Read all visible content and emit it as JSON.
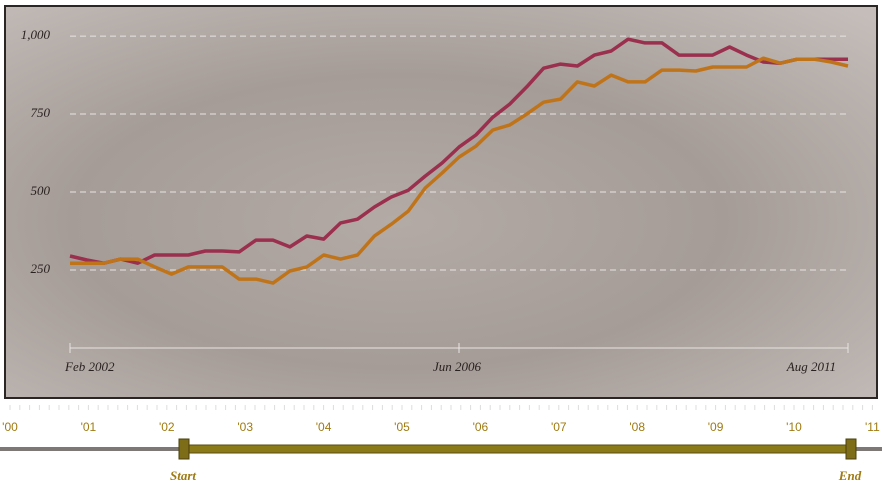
{
  "chart_data": {
    "type": "line",
    "categories": [
      "Feb 2002",
      null,
      null,
      null,
      null,
      null,
      null,
      null,
      null,
      null,
      null,
      null,
      null,
      null,
      null,
      null,
      null,
      null,
      null,
      null,
      null,
      null,
      null,
      "Jun 2006",
      null,
      null,
      null,
      null,
      null,
      null,
      null,
      null,
      null,
      null,
      null,
      null,
      null,
      null,
      null,
      null,
      null,
      null,
      null,
      null,
      null,
      null,
      "Aug 2011"
    ],
    "series": [
      {
        "color": "#9b2f4e",
        "values": [
          295,
          282,
          272,
          285,
          272,
          298,
          298,
          298,
          311,
          311,
          308,
          346,
          346,
          324,
          359,
          349,
          401,
          413,
          452,
          484,
          506,
          551,
          593,
          644,
          683,
          740,
          782,
          837,
          897,
          910,
          904,
          939,
          952,
          990,
          978,
          978,
          939,
          939,
          939,
          965,
          939,
          917,
          913,
          926,
          926,
          926,
          926
        ]
      },
      {
        "color": "#c0741a",
        "values": [
          272,
          272,
          272,
          285,
          285,
          260,
          237,
          260,
          260,
          260,
          221,
          221,
          208,
          247,
          260,
          298,
          285,
          298,
          359,
          397,
          439,
          513,
          561,
          612,
          647,
          699,
          715,
          750,
          788,
          798,
          853,
          840,
          875,
          853,
          853,
          891,
          891,
          888,
          901,
          901,
          901,
          929,
          913,
          926,
          926,
          917,
          904
        ]
      }
    ],
    "ylim": [
      0,
      1090
    ],
    "yticks": [
      250,
      500,
      750,
      {
        "value": 1000,
        "label": "1,000"
      }
    ],
    "grid": true
  },
  "timeline": {
    "years": [
      "'00",
      "'01",
      "'02",
      "'03",
      "'04",
      "'05",
      "'06",
      "'07",
      "'08",
      "'09",
      "'10",
      "'11"
    ],
    "start_label": "Start",
    "end_label": "End"
  }
}
